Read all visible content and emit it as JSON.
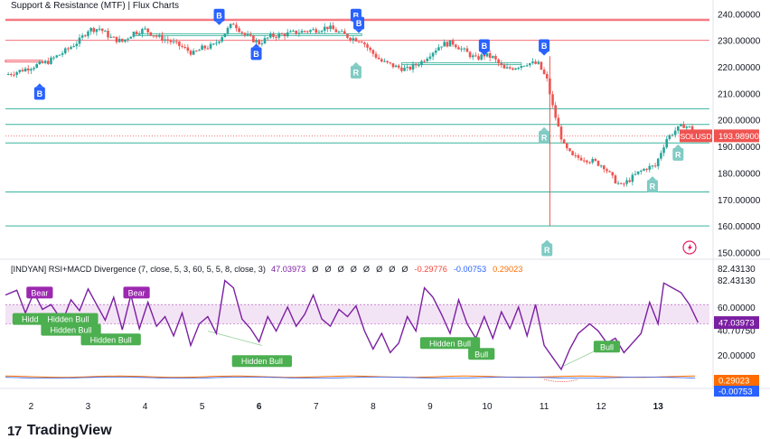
{
  "header": {
    "title": "Support & Resistance (MTF) | Flux Charts",
    "indicator_legend": "[INDYAN] RSI+MACD Divergence (7, close, 5, 3, 60, 5, 5, 8, close, 3)",
    "indicator_values": [
      "47.03973",
      "Ø",
      "Ø",
      "Ø",
      "Ø",
      "Ø",
      "Ø",
      "Ø",
      "Ø",
      "-0.29776",
      "-0.00753",
      "0.29023"
    ],
    "indicator_value_colors": [
      "#7b1fa2",
      "#131722",
      "#131722",
      "#131722",
      "#131722",
      "#131722",
      "#131722",
      "#131722",
      "#131722",
      "#f44336",
      "#2962ff",
      "#ff6d00"
    ]
  },
  "branding": {
    "logo": "17",
    "name": "TradingView"
  },
  "colors": {
    "up": "#26a69a",
    "down": "#ef5350",
    "resistance": "#f23645",
    "support": "#22ab94",
    "rsi": "#7b1fa2",
    "band": "#e1bee7",
    "bull_label": "#4caf50",
    "bear_label": "#9c27b0",
    "break_label": "#2962ff",
    "retest_label": "#80cbc4",
    "price_tag": "#ef5350"
  },
  "chart_data": [
    {
      "type": "candlestick",
      "symbol_tag": "SOLUSD",
      "last_price": 193.989,
      "last_price_label": "193.98900",
      "x_labels": [
        "2",
        "3",
        "4",
        "5",
        "6",
        "7",
        "8",
        "9",
        "10",
        "11",
        "12",
        "13"
      ],
      "x_label_positions_day": [
        2,
        3,
        4,
        5,
        6,
        7,
        8,
        9,
        10,
        11,
        12,
        13
      ],
      "y_ticks": [
        150,
        160,
        170,
        180,
        190,
        200,
        210,
        220,
        230,
        240
      ],
      "y_tick_labels": [
        "150.00000",
        "160.00000",
        "170.00000",
        "180.00000",
        "190.00000",
        "200.00000",
        "210.00000",
        "220.00000",
        "230.00000",
        "240.00000"
      ],
      "ylim": [
        148.8,
        242.5
      ],
      "xlim_day": [
        1.55,
        13.9
      ],
      "resistance_levels": [
        230.0,
        237.5,
        238.0
      ],
      "support_levels": [
        204.2,
        198.3,
        191.3,
        172.8,
        160.0
      ],
      "close_path": [
        [
          1.55,
          217.0
        ],
        [
          1.8,
          218.5
        ],
        [
          2.0,
          220.0
        ],
        [
          2.3,
          222.0
        ],
        [
          2.6,
          226.0
        ],
        [
          2.85,
          230.0
        ],
        [
          3.0,
          234.0
        ],
        [
          3.2,
          234.5
        ],
        [
          3.4,
          231.0
        ],
        [
          3.6,
          229.5
        ],
        [
          3.8,
          233.0
        ],
        [
          4.0,
          234.0
        ],
        [
          4.2,
          231.5
        ],
        [
          4.4,
          230.0
        ],
        [
          4.6,
          228.0
        ],
        [
          4.85,
          225.0
        ],
        [
          5.0,
          227.0
        ],
        [
          5.2,
          228.0
        ],
        [
          5.4,
          233.0
        ],
        [
          5.55,
          236.5
        ],
        [
          5.75,
          232.0
        ],
        [
          6.0,
          229.0
        ],
        [
          6.2,
          231.5
        ],
        [
          6.5,
          232.5
        ],
        [
          6.8,
          233.5
        ],
        [
          7.0,
          234.0
        ],
        [
          7.2,
          235.0
        ],
        [
          7.4,
          233.0
        ],
        [
          7.6,
          231.0
        ],
        [
          7.8,
          230.0
        ],
        [
          7.95,
          226.0
        ],
        [
          8.15,
          222.0
        ],
        [
          8.4,
          220.0
        ],
        [
          8.6,
          219.0
        ],
        [
          8.85,
          222.0
        ],
        [
          9.0,
          225.0
        ],
        [
          9.2,
          228.5
        ],
        [
          9.4,
          229.0
        ],
        [
          9.6,
          226.0
        ],
        [
          9.8,
          223.0
        ],
        [
          9.95,
          224.5
        ],
        [
          10.1,
          223.5
        ],
        [
          10.3,
          219.0
        ],
        [
          10.5,
          220.0
        ],
        [
          10.7,
          221.5
        ],
        [
          10.9,
          221.0
        ],
        [
          11.05,
          215.0
        ],
        [
          11.15,
          205.0
        ],
        [
          11.25,
          197.0
        ],
        [
          11.35,
          190.0
        ],
        [
          11.5,
          186.0
        ],
        [
          11.7,
          185.5
        ],
        [
          11.9,
          184.0
        ],
        [
          12.05,
          182.5
        ],
        [
          12.2,
          178.0
        ],
        [
          12.35,
          175.0
        ],
        [
          12.5,
          177.5
        ],
        [
          12.65,
          180.0
        ],
        [
          12.8,
          182.0
        ],
        [
          12.95,
          182.5
        ],
        [
          13.05,
          188.0
        ],
        [
          13.15,
          193.0
        ],
        [
          13.3,
          196.0
        ],
        [
          13.45,
          198.0
        ],
        [
          13.55,
          197.0
        ],
        [
          13.7,
          193.989
        ]
      ],
      "labels": [
        {
          "text": "B",
          "kind": "break_up",
          "day": 2.15,
          "price": 210.0
        },
        {
          "text": "B",
          "kind": "break_down",
          "day": 5.3,
          "price": 239.5
        },
        {
          "text": "B",
          "kind": "break_up",
          "day": 5.95,
          "price": 225.0
        },
        {
          "text": "B",
          "kind": "break_down",
          "day": 7.7,
          "price": 239.5
        },
        {
          "text": "B",
          "kind": "break_down",
          "day": 7.75,
          "price": 236.5
        },
        {
          "text": "B",
          "kind": "break_down",
          "day": 9.95,
          "price": 228.0
        },
        {
          "text": "B",
          "kind": "break_down",
          "day": 11.0,
          "price": 228.0
        },
        {
          "text": "R",
          "kind": "retest",
          "day": 7.7,
          "price": 218.0
        },
        {
          "text": "R",
          "kind": "retest",
          "day": 11.0,
          "price": 193.5
        },
        {
          "text": "R",
          "kind": "retest",
          "day": 13.35,
          "price": 187.0
        },
        {
          "text": "R",
          "kind": "retest",
          "day": 12.9,
          "price": 175.0
        },
        {
          "text": "R",
          "kind": "retest",
          "day": 11.05,
          "price": 151.0
        }
      ]
    },
    {
      "type": "line",
      "name": "RSI+MACD Divergence",
      "y_ticks": [
        20,
        40.7075,
        60,
        82.4313
      ],
      "y_tick_labels": [
        "20.00000",
        "40.70750",
        "60.00000",
        "82.43130"
      ],
      "extra_axis_labels": [
        "82.43130",
        "40.70750"
      ],
      "ylim": [
        -4,
        96
      ],
      "band": [
        46.0,
        62.0
      ],
      "last_value": 47.03973,
      "last_value_label": "47.03973",
      "macd_tags": [
        {
          "label": "0.29023",
          "color": "#ff6d00"
        },
        {
          "label": "-0.00753",
          "color": "#2962ff"
        }
      ],
      "rsi_path": [
        [
          1.55,
          70
        ],
        [
          1.75,
          74
        ],
        [
          1.9,
          55
        ],
        [
          2.05,
          72
        ],
        [
          2.2,
          58
        ],
        [
          2.35,
          62
        ],
        [
          2.55,
          48
        ],
        [
          2.7,
          66
        ],
        [
          2.85,
          57
        ],
        [
          3.0,
          75
        ],
        [
          3.15,
          62
        ],
        [
          3.3,
          49
        ],
        [
          3.45,
          68
        ],
        [
          3.6,
          41
        ],
        [
          3.75,
          70
        ],
        [
          3.9,
          42
        ],
        [
          4.05,
          64
        ],
        [
          4.2,
          44
        ],
        [
          4.35,
          52
        ],
        [
          4.5,
          36
        ],
        [
          4.65,
          55
        ],
        [
          4.8,
          28
        ],
        [
          4.95,
          46
        ],
        [
          5.1,
          52
        ],
        [
          5.25,
          38
        ],
        [
          5.4,
          82
        ],
        [
          5.55,
          76
        ],
        [
          5.7,
          50
        ],
        [
          5.85,
          42
        ],
        [
          6.0,
          31
        ],
        [
          6.15,
          52
        ],
        [
          6.3,
          40
        ],
        [
          6.5,
          60
        ],
        [
          6.65,
          44
        ],
        [
          6.8,
          54
        ],
        [
          6.95,
          70
        ],
        [
          7.1,
          50
        ],
        [
          7.25,
          44
        ],
        [
          7.4,
          58
        ],
        [
          7.55,
          52
        ],
        [
          7.7,
          61
        ],
        [
          7.85,
          40
        ],
        [
          8.0,
          25
        ],
        [
          8.15,
          38
        ],
        [
          8.3,
          22
        ],
        [
          8.45,
          30
        ],
        [
          8.6,
          52
        ],
        [
          8.75,
          40
        ],
        [
          8.9,
          76
        ],
        [
          9.05,
          68
        ],
        [
          9.2,
          54
        ],
        [
          9.35,
          38
        ],
        [
          9.5,
          66
        ],
        [
          9.65,
          46
        ],
        [
          9.8,
          34
        ],
        [
          9.95,
          52
        ],
        [
          10.1,
          34
        ],
        [
          10.25,
          56
        ],
        [
          10.4,
          42
        ],
        [
          10.55,
          60
        ],
        [
          10.7,
          36
        ],
        [
          10.85,
          62
        ],
        [
          11.0,
          28
        ],
        [
          11.15,
          18
        ],
        [
          11.3,
          8
        ],
        [
          11.45,
          25
        ],
        [
          11.6,
          38
        ],
        [
          11.8,
          46
        ],
        [
          11.95,
          40
        ],
        [
          12.1,
          30
        ],
        [
          12.25,
          34
        ],
        [
          12.4,
          22
        ],
        [
          12.55,
          30
        ],
        [
          12.7,
          38
        ],
        [
          12.85,
          64
        ],
        [
          13.0,
          46
        ],
        [
          13.1,
          80
        ],
        [
          13.25,
          76
        ],
        [
          13.4,
          72
        ],
        [
          13.55,
          62
        ],
        [
          13.7,
          47.03973
        ]
      ],
      "labels": [
        {
          "text": "Bear",
          "kind": "bear",
          "day": 2.15,
          "value": 72
        },
        {
          "text": "Bear",
          "kind": "bear",
          "day": 3.85,
          "value": 72
        },
        {
          "text": "Hidden Bull",
          "kind": "bull",
          "day": 2.2,
          "value": 50
        },
        {
          "text": "Hidden Bull",
          "kind": "bull",
          "day": 2.65,
          "value": 50
        },
        {
          "text": "Hidden Bull",
          "kind": "bull",
          "day": 2.7,
          "value": 41
        },
        {
          "text": "Hidden Bull",
          "kind": "bull",
          "day": 3.4,
          "value": 33
        },
        {
          "text": "Hidden Bull",
          "kind": "bull",
          "day": 6.05,
          "value": 15
        },
        {
          "text": "Hidden Bull",
          "kind": "bull",
          "day": 9.35,
          "value": 30
        },
        {
          "text": "Bull",
          "kind": "bull",
          "day": 9.9,
          "value": 21
        },
        {
          "text": "Bull",
          "kind": "bull",
          "day": 12.1,
          "value": 27
        }
      ],
      "guide_lines": [
        {
          "from": [
            5.1,
            40
          ],
          "to": [
            6.05,
            28
          ]
        },
        {
          "from": [
            11.3,
            10
          ],
          "to": [
            12.05,
            27
          ]
        }
      ]
    }
  ]
}
